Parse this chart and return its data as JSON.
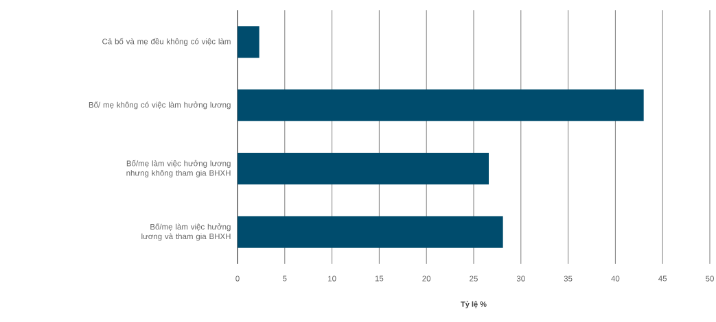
{
  "chart_data": {
    "type": "bar",
    "orientation": "horizontal",
    "xlabel": "Tỷ lệ %",
    "categories": [
      "Cả bố và mẹ đều không có việc làm",
      "Bố/ mẹ không có việc làm hưởng lương",
      "Bố/mẹ làm việc hưởng lương nhưng không tham gia BHXH",
      "Bố/mẹ làm việc hưởng lương và tham gia BHXH"
    ],
    "values": [
      2.3,
      43.0,
      26.6,
      28.1
    ],
    "color": "#004c6d",
    "xlim": [
      0,
      50
    ],
    "xticks": [
      0,
      5,
      10,
      15,
      20,
      25,
      30,
      35,
      40,
      45,
      50
    ],
    "grid": "x"
  }
}
